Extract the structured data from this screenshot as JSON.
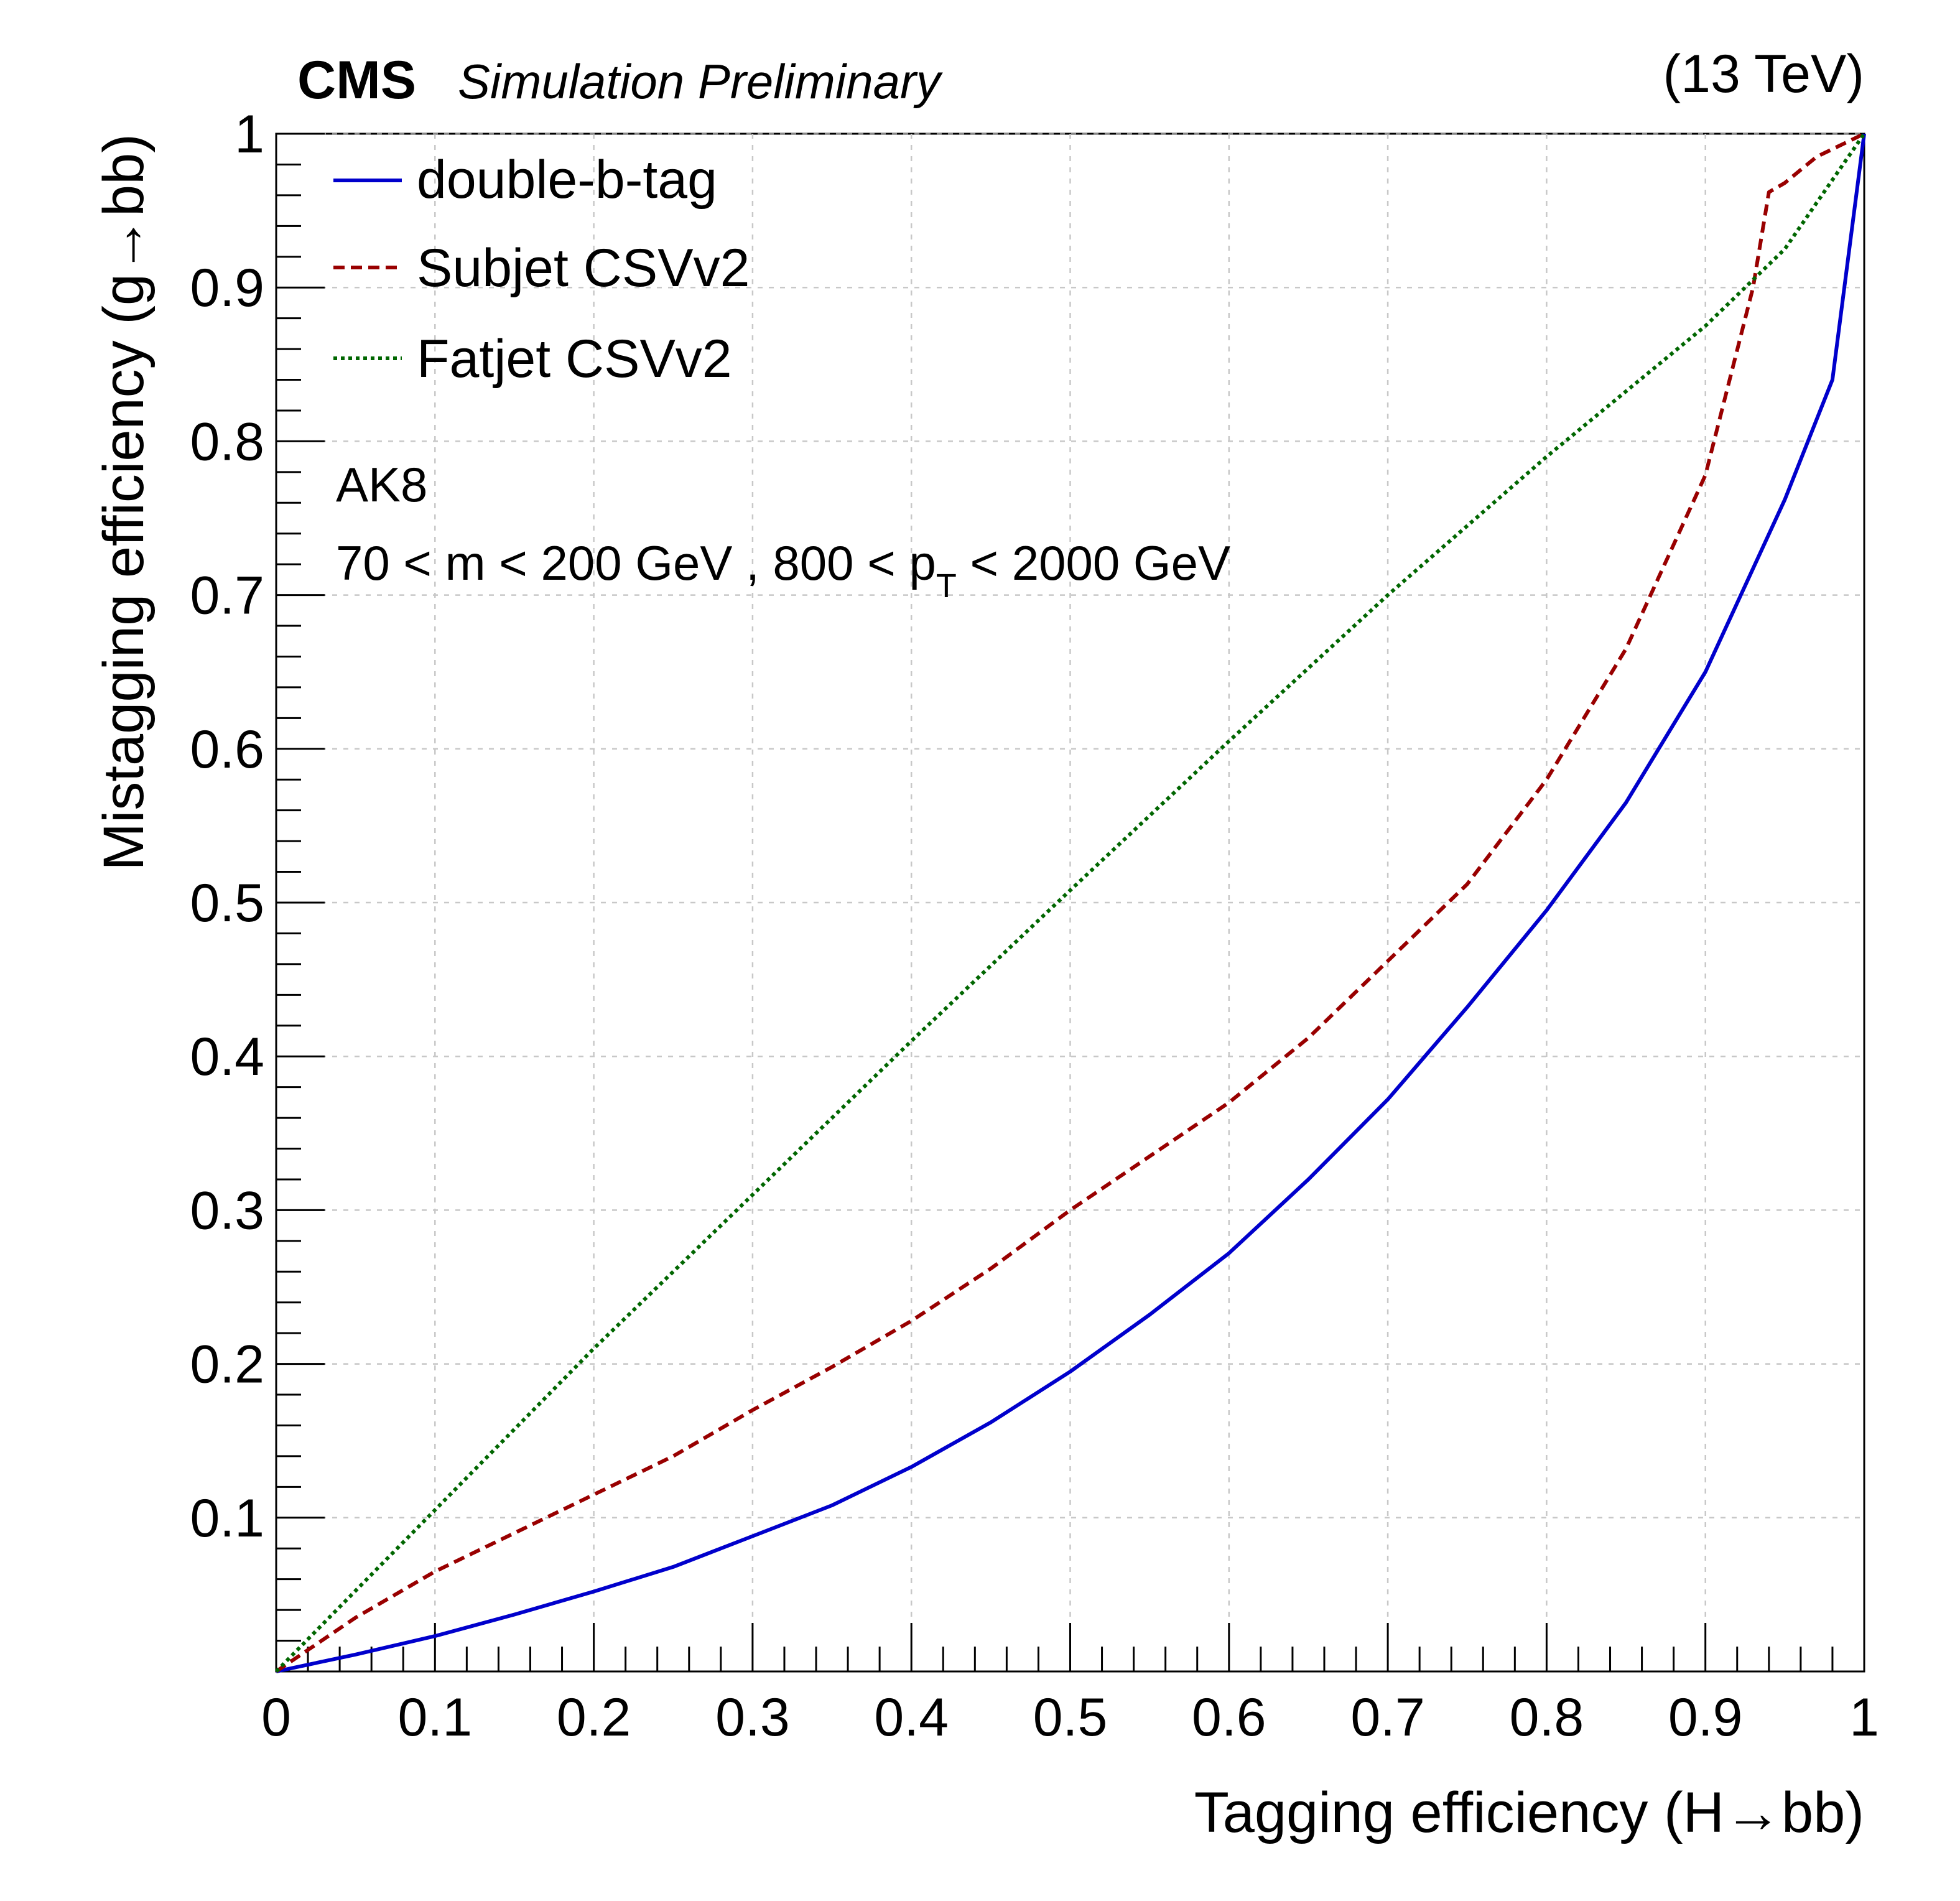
{
  "header": {
    "experiment": "CMS",
    "status": "Simulation Preliminary",
    "energy": "(13 TeV)"
  },
  "annotations": {
    "jet_algo": "AK8",
    "cuts_prefix": "70 < m < 200 GeV , 800 < p",
    "cuts_sub": "T",
    "cuts_suffix": " < 2000 GeV"
  },
  "chart_data": {
    "type": "line",
    "title": "",
    "xlabel": "Tagging efficiency (H→bb)",
    "ylabel": "Mistagging efficiency (g→bb)",
    "xlim": [
      0,
      1
    ],
    "ylim": [
      0,
      1
    ],
    "grid": true,
    "legend_position": "top-left",
    "x_ticks": [
      "0",
      "0.1",
      "0.2",
      "0.3",
      "0.4",
      "0.5",
      "0.6",
      "0.7",
      "0.8",
      "0.9",
      "1"
    ],
    "y_ticks": [
      "0.1",
      "0.2",
      "0.3",
      "0.4",
      "0.5",
      "0.6",
      "0.7",
      "0.8",
      "0.9",
      "1"
    ],
    "series": [
      {
        "name": "double-b-tag",
        "color": "#0000cc",
        "style": "solid",
        "x": [
          0,
          0.05,
          0.1,
          0.15,
          0.2,
          0.25,
          0.3,
          0.35,
          0.4,
          0.45,
          0.5,
          0.55,
          0.6,
          0.65,
          0.7,
          0.75,
          0.8,
          0.85,
          0.9,
          0.95,
          0.98,
          1.0
        ],
        "y": [
          0,
          0.011,
          0.023,
          0.037,
          0.052,
          0.068,
          0.088,
          0.108,
          0.133,
          0.162,
          0.195,
          0.232,
          0.272,
          0.32,
          0.372,
          0.432,
          0.495,
          0.565,
          0.65,
          0.762,
          0.84,
          1.0
        ]
      },
      {
        "name": "Subjet CSVv2",
        "color": "#990000",
        "style": "dashed",
        "x": [
          0,
          0.05,
          0.1,
          0.15,
          0.2,
          0.25,
          0.3,
          0.35,
          0.4,
          0.45,
          0.5,
          0.55,
          0.6,
          0.65,
          0.7,
          0.75,
          0.8,
          0.85,
          0.9,
          0.93,
          0.94,
          0.95,
          0.97,
          1.0
        ],
        "y": [
          0,
          0.035,
          0.065,
          0.09,
          0.115,
          0.14,
          0.17,
          0.198,
          0.228,
          0.262,
          0.3,
          0.335,
          0.37,
          0.412,
          0.462,
          0.512,
          0.58,
          0.665,
          0.778,
          0.9,
          0.962,
          0.968,
          0.985,
          1.0
        ]
      },
      {
        "name": "Fatjet CSVv2",
        "color": "#006600",
        "style": "dotted",
        "x": [
          0,
          0.1,
          0.2,
          0.3,
          0.4,
          0.5,
          0.6,
          0.7,
          0.8,
          0.9,
          0.95,
          1.0
        ],
        "y": [
          0,
          0.105,
          0.21,
          0.31,
          0.41,
          0.508,
          0.605,
          0.7,
          0.79,
          0.875,
          0.925,
          1.0
        ]
      }
    ]
  }
}
